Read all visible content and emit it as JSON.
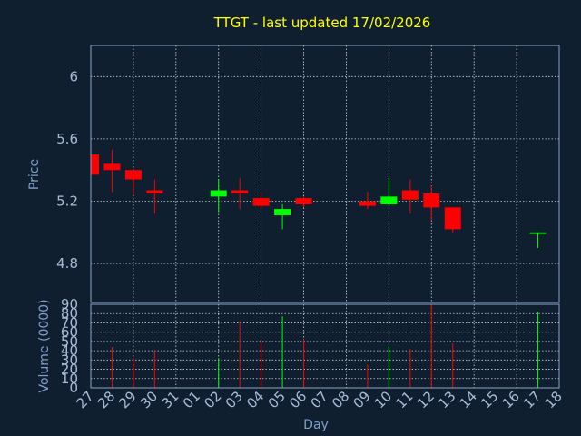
{
  "chart_data": {
    "type": "candlestick",
    "title": "TTGT - last updated 17/02/2026",
    "xlabel": "Day",
    "ylabel_price": "Price",
    "ylabel_volume": "Volume (0000)",
    "x_tick_labels": [
      "27",
      "28",
      "29",
      "30",
      "31",
      "01",
      "02",
      "03",
      "04",
      "05",
      "06",
      "07",
      "08",
      "09",
      "10",
      "11",
      "12",
      "13",
      "14",
      "15",
      "16",
      "17",
      "18"
    ],
    "price_axis": {
      "ylim": [
        4.55,
        6.2
      ],
      "ticks": [
        "4.8",
        "5.2",
        "5.6",
        "6"
      ],
      "tick_values": [
        4.8,
        5.2,
        5.6,
        6.0
      ]
    },
    "volume_axis": {
      "ylim": [
        0,
        90
      ],
      "ticks": [
        "0",
        "10",
        "20",
        "30",
        "40",
        "50",
        "60",
        "70",
        "80",
        "90"
      ],
      "tick_values": [
        0,
        10,
        20,
        30,
        40,
        50,
        60,
        70,
        80,
        90
      ]
    },
    "grid": true,
    "colors": {
      "up": "#00ff00",
      "down": "#ff0000",
      "background": "#0f1f30",
      "title": "#ffff00",
      "axis_text": "#7f9fc8",
      "frame": "#8aa3c4"
    },
    "candles": [
      {
        "day": "27",
        "open": 5.5,
        "high": 5.5,
        "low": 5.37,
        "close": 5.37,
        "volume": 0
      },
      {
        "day": "28",
        "open": 5.44,
        "high": 5.53,
        "low": 5.26,
        "close": 5.4,
        "volume": 44
      },
      {
        "day": "29",
        "open": 5.4,
        "high": 5.4,
        "low": 5.24,
        "close": 5.34,
        "volume": 32
      },
      {
        "day": "30",
        "open": 5.27,
        "high": 5.34,
        "low": 5.12,
        "close": 5.25,
        "volume": 40
      },
      {
        "day": "02",
        "open": 5.23,
        "high": 5.34,
        "low": 5.13,
        "close": 5.27,
        "volume": 32
      },
      {
        "day": "03",
        "open": 5.27,
        "high": 5.35,
        "low": 5.15,
        "close": 5.25,
        "volume": 72
      },
      {
        "day": "04",
        "open": 5.22,
        "high": 5.25,
        "low": 5.15,
        "close": 5.17,
        "volume": 50
      },
      {
        "day": "05",
        "open": 5.11,
        "high": 5.18,
        "low": 5.02,
        "close": 5.15,
        "volume": 77
      },
      {
        "day": "06",
        "open": 5.22,
        "high": 5.23,
        "low": 5.16,
        "close": 5.18,
        "volume": 52
      },
      {
        "day": "09",
        "open": 5.2,
        "high": 5.26,
        "low": 5.15,
        "close": 5.17,
        "volume": 25
      },
      {
        "day": "10",
        "open": 5.18,
        "high": 5.35,
        "low": 5.17,
        "close": 5.23,
        "volume": 45
      },
      {
        "day": "11",
        "open": 5.27,
        "high": 5.34,
        "low": 5.12,
        "close": 5.21,
        "volume": 42
      },
      {
        "day": "12",
        "open": 5.25,
        "high": 5.3,
        "low": 5.08,
        "close": 5.16,
        "volume": 90
      },
      {
        "day": "13",
        "open": 5.16,
        "high": 5.16,
        "low": 5.0,
        "close": 5.02,
        "volume": 48
      },
      {
        "day": "17",
        "open": 4.99,
        "high": 5.0,
        "low": 4.9,
        "close": 5.0,
        "volume": 82
      }
    ]
  }
}
